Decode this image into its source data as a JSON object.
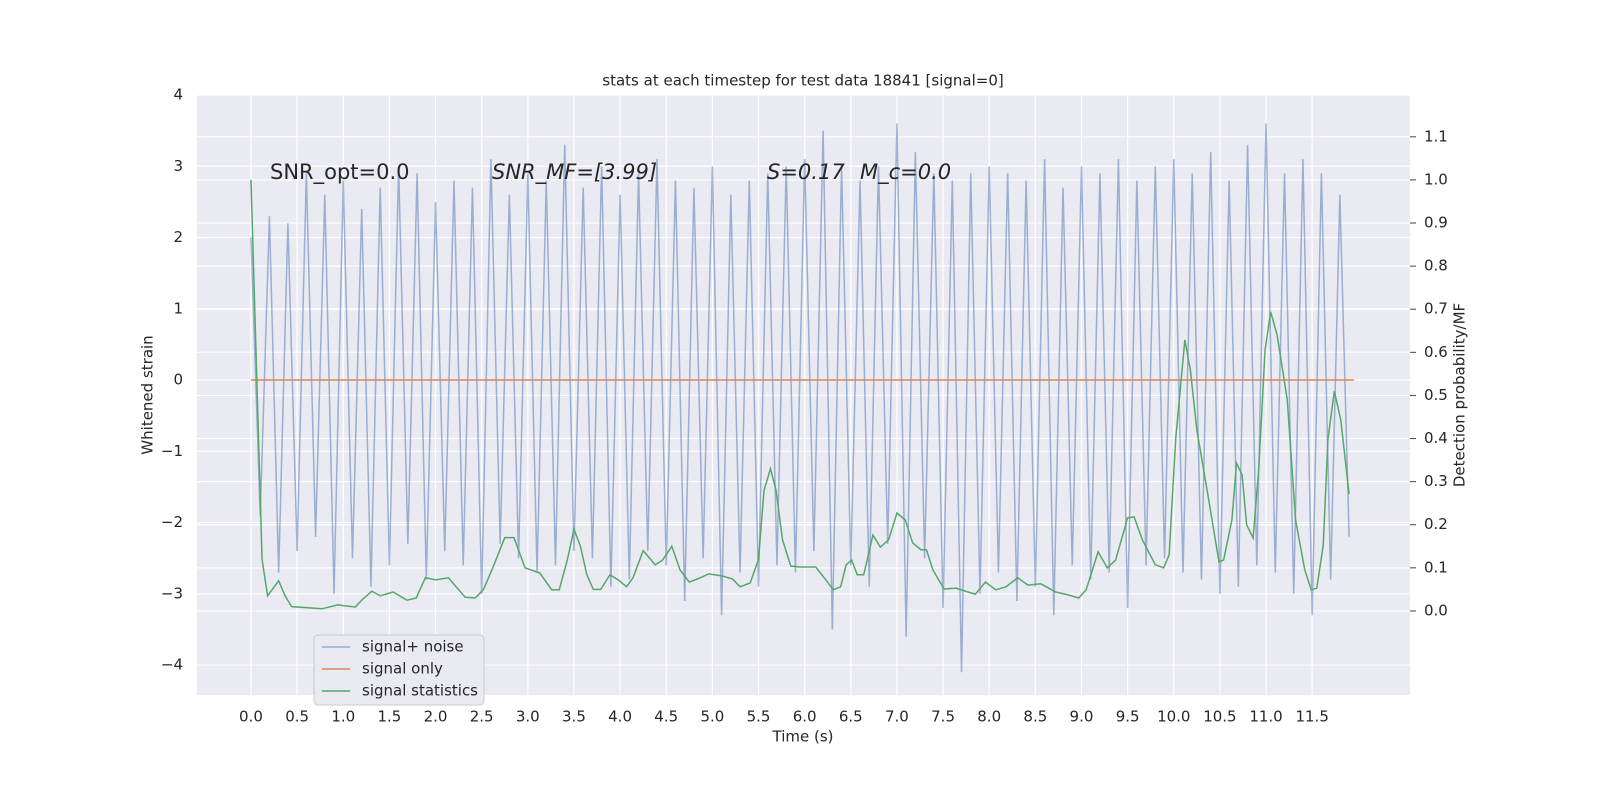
{
  "chart_data": {
    "type": "line",
    "title": "stats at each timestep for test data 18841 [signal=0]",
    "xlabel": "Time (s)",
    "ylabel": "Whitened strain",
    "y2label": "Detection probability/MF",
    "annotations": [
      "SNR_opt=0.0",
      "SNR_MF=[3.99]",
      "S=0.17",
      "M_c=0.0"
    ],
    "xlim": [
      -0.585,
      12.56
    ],
    "ylim": [
      -4.42,
      4
    ],
    "y2lim": [
      -0.195,
      1.197
    ],
    "xticks": [
      {
        "value": 0,
        "label": "0.0"
      },
      {
        "value": 0.5,
        "label": "0.5"
      },
      {
        "value": 1,
        "label": "1.0"
      },
      {
        "value": 1.5,
        "label": "1.5"
      },
      {
        "value": 2,
        "label": "2.0"
      },
      {
        "value": 2.5,
        "label": "2.5"
      },
      {
        "value": 3,
        "label": "3.0"
      },
      {
        "value": 3.5,
        "label": "3.5"
      },
      {
        "value": 4,
        "label": "4.0"
      },
      {
        "value": 4.5,
        "label": "4.5"
      },
      {
        "value": 5,
        "label": "5.0"
      },
      {
        "value": 5.5,
        "label": "5.5"
      },
      {
        "value": 6,
        "label": "6.0"
      },
      {
        "value": 6.5,
        "label": "6.5"
      },
      {
        "value": 7,
        "label": "7.0"
      },
      {
        "value": 7.5,
        "label": "7.5"
      },
      {
        "value": 8,
        "label": "8.0"
      },
      {
        "value": 8.5,
        "label": "8.5"
      },
      {
        "value": 9,
        "label": "9.0"
      },
      {
        "value": 9.5,
        "label": "9.5"
      },
      {
        "value": 10,
        "label": "10.0"
      },
      {
        "value": 10.5,
        "label": "10.5"
      },
      {
        "value": 11,
        "label": "11.0"
      },
      {
        "value": 11.5,
        "label": "11.5"
      }
    ],
    "yticks": [
      {
        "value": -4,
        "label": "−4"
      },
      {
        "value": -3,
        "label": "−3"
      },
      {
        "value": -2,
        "label": "−2"
      },
      {
        "value": -1,
        "label": "−1"
      },
      0,
      1,
      2,
      3,
      4
    ],
    "y2ticks": [
      {
        "value": 0,
        "label": "0.0"
      },
      {
        "value": 0.1,
        "label": "0.1"
      },
      {
        "value": 0.2,
        "label": "0.2"
      },
      {
        "value": 0.3,
        "label": "0.3"
      },
      {
        "value": 0.4,
        "label": "0.4"
      },
      {
        "value": 0.5,
        "label": "0.5"
      },
      {
        "value": 0.6,
        "label": "0.6"
      },
      {
        "value": 0.7,
        "label": "0.7"
      },
      {
        "value": 0.8,
        "label": "0.8"
      },
      {
        "value": 0.9,
        "label": "0.9"
      },
      {
        "value": 1,
        "label": "1.0"
      },
      {
        "value": 1.1,
        "label": "1.1"
      }
    ],
    "grid": true,
    "legend": "lower left",
    "series": [
      {
        "name": "signal+ noise",
        "color": "#4c72b0",
        "opacity": 0.5,
        "x": [
          0,
          0.1,
          0.2,
          0.3,
          0.4,
          0.5,
          0.6,
          0.7,
          0.8,
          0.9,
          1,
          1.1,
          1.2,
          1.3,
          1.4,
          1.5,
          1.6,
          1.7,
          1.8,
          1.9,
          2,
          2.1,
          2.2,
          2.3,
          2.4,
          2.5,
          2.6,
          2.7,
          2.8,
          2.9,
          3,
          3.1,
          3.2,
          3.3,
          3.4,
          3.5,
          3.6,
          3.7,
          3.8,
          3.9,
          4,
          4.1,
          4.2,
          4.3,
          4.4,
          4.5,
          4.6,
          4.7,
          4.8,
          4.9,
          5,
          5.1,
          5.2,
          5.3,
          5.4,
          5.5,
          5.6,
          5.7,
          5.8,
          5.9,
          6,
          6.1,
          6.2,
          6.3,
          6.4,
          6.5,
          6.6,
          6.7,
          6.8,
          6.9,
          7,
          7.1,
          7.2,
          7.3,
          7.4,
          7.5,
          7.6,
          7.7,
          7.8,
          7.9,
          8,
          8.1,
          8.2,
          8.3,
          8.4,
          8.5,
          8.6,
          8.7,
          8.8,
          8.9,
          9,
          9.1,
          9.2,
          9.3,
          9.4,
          9.5,
          9.6,
          9.7,
          9.8,
          9.9,
          10,
          10.1,
          10.2,
          10.3,
          10.4,
          10.5,
          10.6,
          10.7,
          10.8,
          10.9,
          11,
          11.1,
          11.2,
          11.3,
          11.4,
          11.5,
          11.6,
          11.7,
          11.8,
          11.9
        ],
        "values": [
          2.0,
          -1.9,
          2.3,
          -2.7,
          2.2,
          -2.4,
          2.9,
          -2.2,
          2.6,
          -3.0,
          2.8,
          -2.5,
          2.4,
          -2.9,
          2.7,
          -2.6,
          3.0,
          -2.3,
          2.9,
          -2.8,
          2.5,
          -2.4,
          2.8,
          -2.6,
          2.7,
          -3.0,
          3.1,
          -2.3,
          2.6,
          -2.5,
          2.9,
          -2.7,
          2.8,
          -2.6,
          3.3,
          -2.4,
          2.7,
          -2.5,
          3.0,
          -2.9,
          2.6,
          -2.8,
          2.9,
          -2.4,
          3.1,
          -2.6,
          2.8,
          -3.1,
          2.7,
          -2.5,
          3.0,
          -3.3,
          2.6,
          -2.7,
          2.8,
          -2.9,
          2.9,
          -2.6,
          3.0,
          -2.7,
          3.1,
          -2.4,
          3.5,
          -3.5,
          3.0,
          -2.6,
          2.8,
          -2.9,
          3.0,
          -2.3,
          3.6,
          -3.6,
          3.2,
          -2.5,
          2.9,
          -3.2,
          2.8,
          -4.1,
          2.9,
          -3.0,
          3.0,
          -2.7,
          2.9,
          -3.1,
          2.8,
          -2.9,
          3.1,
          -3.3,
          2.7,
          -2.6,
          3.0,
          -2.8,
          2.9,
          -2.7,
          3.1,
          -3.2,
          2.8,
          -2.6,
          3.0,
          -2.5,
          3.1,
          -2.7,
          2.9,
          -2.8,
          3.2,
          -3.0,
          2.8,
          -2.9,
          3.3,
          -2.6,
          3.6,
          -2.7,
          2.9,
          -3.0,
          3.1,
          -3.3,
          2.9,
          -2.8,
          2.6,
          -2.2
        ]
      },
      {
        "name": "signal only",
        "color": "#dd8452",
        "x": [
          0,
          11.95
        ],
        "values": [
          0,
          0
        ]
      },
      {
        "name": "signal statistics",
        "color": "#55a868",
        "axis": "y2",
        "x": [
          0,
          0.12,
          0.18,
          0.3,
          0.37,
          0.44,
          0.64,
          0.77,
          0.94,
          1.13,
          1.2,
          1.31,
          1.4,
          1.54,
          1.69,
          1.79,
          1.89,
          2.0,
          2.14,
          2.32,
          2.43,
          2.52,
          2.62,
          2.75,
          2.85,
          2.97,
          3.13,
          3.26,
          3.34,
          3.43,
          3.5,
          3.57,
          3.64,
          3.71,
          3.79,
          3.89,
          3.98,
          4.07,
          4.14,
          4.25,
          4.33,
          4.38,
          4.46,
          4.56,
          4.65,
          4.75,
          4.87,
          4.96,
          5.11,
          5.22,
          5.3,
          5.41,
          5.5,
          5.56,
          5.63,
          5.69,
          5.76,
          5.85,
          5.95,
          6.12,
          6.23,
          6.31,
          6.39,
          6.45,
          6.51,
          6.57,
          6.64,
          6.74,
          6.82,
          6.91,
          7.0,
          7.09,
          7.17,
          7.26,
          7.32,
          7.39,
          7.51,
          7.64,
          7.77,
          7.85,
          7.96,
          8.07,
          8.18,
          8.31,
          8.42,
          8.56,
          8.72,
          8.86,
          8.97,
          9.05,
          9.18,
          9.28,
          9.37,
          9.5,
          9.57,
          9.66,
          9.8,
          9.89,
          9.95,
          10.02,
          10.12,
          10.18,
          10.25,
          10.37,
          10.49,
          10.54,
          10.63,
          10.68,
          10.74,
          10.79,
          10.86,
          10.92,
          10.99,
          11.05,
          11.12,
          11.23,
          11.32,
          11.42,
          11.49,
          11.55,
          11.62,
          11.67,
          11.74,
          11.81,
          11.9
        ],
        "values": [
          1.0,
          0.12,
          0.035,
          0.07,
          0.035,
          0.01,
          0.007,
          0.005,
          0.014,
          0.009,
          0.025,
          0.046,
          0.035,
          0.044,
          0.025,
          0.03,
          0.077,
          0.072,
          0.077,
          0.032,
          0.03,
          0.05,
          0.1,
          0.17,
          0.17,
          0.1,
          0.088,
          0.049,
          0.049,
          0.12,
          0.19,
          0.15,
          0.084,
          0.05,
          0.05,
          0.084,
          0.072,
          0.056,
          0.077,
          0.14,
          0.12,
          0.107,
          0.118,
          0.15,
          0.095,
          0.067,
          0.077,
          0.086,
          0.081,
          0.074,
          0.056,
          0.065,
          0.12,
          0.28,
          0.33,
          0.28,
          0.165,
          0.104,
          0.102,
          0.102,
          0.072,
          0.049,
          0.056,
          0.107,
          0.118,
          0.084,
          0.084,
          0.176,
          0.148,
          0.165,
          0.227,
          0.211,
          0.158,
          0.142,
          0.142,
          0.095,
          0.051,
          0.053,
          0.044,
          0.039,
          0.067,
          0.049,
          0.056,
          0.077,
          0.06,
          0.063,
          0.044,
          0.037,
          0.03,
          0.049,
          0.137,
          0.1,
          0.118,
          0.216,
          0.218,
          0.165,
          0.107,
          0.1,
          0.13,
          0.397,
          0.629,
          0.559,
          0.42,
          0.269,
          0.114,
          0.118,
          0.211,
          0.343,
          0.316,
          0.2,
          0.169,
          0.327,
          0.606,
          0.694,
          0.64,
          0.49,
          0.211,
          0.095,
          0.049,
          0.053,
          0.153,
          0.397,
          0.51,
          0.443,
          0.271
        ]
      }
    ]
  }
}
